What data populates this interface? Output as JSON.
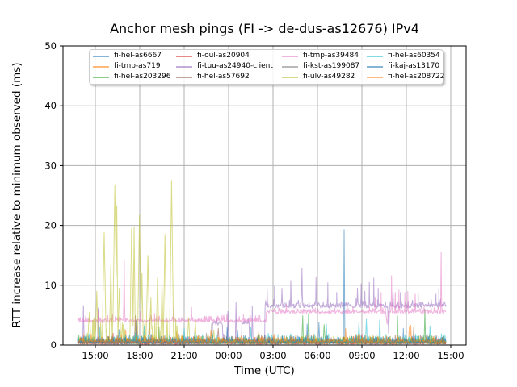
{
  "chart_data": {
    "type": "line",
    "title": "Anchor mesh pings (FI -> de-dus-as12676) IPv4",
    "xlabel": "Time (UTC)",
    "ylabel": "RTT increase relative to minimum observed (ms)",
    "ylim": [
      0,
      50
    ],
    "y_ticks": [
      0,
      10,
      20,
      30,
      40,
      50
    ],
    "x_tick_hours": [
      15,
      18,
      21,
      24,
      27,
      30,
      33,
      36,
      39
    ],
    "x_tick_labels": [
      "15:00",
      "18:00",
      "21:00",
      "00:00",
      "03:00",
      "06:00",
      "09:00",
      "12:00",
      "15:00"
    ],
    "x_hours_range": [
      13.8,
      38.7
    ],
    "grid": true,
    "grid_color": "#b0b0b0",
    "line_alpha": 0.55,
    "legend_position": "upper center, 4 columns, 3 rows",
    "series": [
      {
        "name": "fi-hel-as6667",
        "color": "#1f77b4",
        "segments": [
          [
            13.8,
            38.7,
            0.35,
            1.1,
            0.3
          ]
        ],
        "spikes": [
          [
            16.6,
            2.6,
            0.07
          ],
          [
            24.6,
            2.5,
            0.08
          ],
          [
            30.1,
            3.8,
            0.06
          ],
          [
            31.8,
            19.3,
            0.05
          ]
        ]
      },
      {
        "name": "fi-tmp-as719",
        "color": "#ff7f0e",
        "segments": [
          [
            13.8,
            38.7,
            0.3,
            1.0,
            0.3
          ]
        ],
        "spikes": [
          [
            17.05,
            2.5,
            0.08
          ],
          [
            20.5,
            2.2,
            0.08
          ],
          [
            26.0,
            2.3,
            0.08
          ],
          [
            36.2,
            3.1,
            0.06
          ]
        ]
      },
      {
        "name": "fi-hel-as203296",
        "color": "#2ca02c",
        "segments": [
          [
            13.8,
            38.7,
            0.3,
            1.2,
            0.3
          ]
        ],
        "spikes": [
          [
            19.3,
            3.0,
            0.06
          ],
          [
            29.0,
            4.9,
            0.06
          ],
          [
            29.4,
            5.3,
            0.06
          ],
          [
            30.45,
            3.4,
            0.08
          ],
          [
            35.4,
            4.9,
            0.05
          ],
          [
            37.25,
            6.0,
            0.05
          ]
        ]
      },
      {
        "name": "fi-oul-as20904",
        "color": "#d62728",
        "segments": [
          [
            13.8,
            38.7,
            0.25,
            0.8,
            0.25
          ]
        ],
        "spikes": [
          [
            16.2,
            2.0,
            0.06
          ],
          [
            33.0,
            1.8,
            0.06
          ]
        ]
      },
      {
        "name": "fi-tuu-as24940-client",
        "color": "#9467bd",
        "segments": [
          [
            13.8,
            22.9,
            0.35,
            1.3,
            0.3
          ],
          [
            22.9,
            23.6,
            3.6,
            0.9,
            0.6
          ],
          [
            23.6,
            24.9,
            0.5,
            1.5,
            0.4
          ],
          [
            24.9,
            25.4,
            3.8,
            0.9,
            0.6
          ],
          [
            25.4,
            26.45,
            0.5,
            1.2,
            0.4
          ],
          [
            26.45,
            38.7,
            6.5,
            1.0,
            0.7
          ]
        ],
        "spikes": [
          [
            14.2,
            6.6,
            0.05
          ],
          [
            15.2,
            6.2,
            0.05
          ],
          [
            17.8,
            4.0,
            0.08
          ],
          [
            23.95,
            5.6,
            0.05
          ],
          [
            24.5,
            7.1,
            0.05
          ],
          [
            25.6,
            6.5,
            0.05
          ],
          [
            26.6,
            9.4,
            0.08
          ],
          [
            27.1,
            9.8,
            0.06
          ],
          [
            27.6,
            9.5,
            0.12
          ],
          [
            28.2,
            10.8,
            0.05
          ],
          [
            28.95,
            12.8,
            0.09
          ],
          [
            29.9,
            11.3,
            0.06
          ],
          [
            30.7,
            10.4,
            0.05
          ],
          [
            31.3,
            8.8,
            0.05
          ],
          [
            32.7,
            9.5,
            0.05
          ],
          [
            32.95,
            10.2,
            0.05
          ],
          [
            33.2,
            9.0,
            0.05
          ],
          [
            33.5,
            10.5,
            0.05
          ],
          [
            33.8,
            11.2,
            0.05
          ],
          [
            34.1,
            9.5,
            0.05
          ],
          [
            35.1,
            9.0,
            0.05
          ],
          [
            35.6,
            8.8,
            0.05
          ],
          [
            36.8,
            8.6,
            0.05
          ],
          [
            38.0,
            8.5,
            0.04
          ],
          [
            38.2,
            9.5,
            0.04
          ]
        ],
        "dips": [
          [
            34.8,
            2.0,
            0.07
          ]
        ]
      },
      {
        "name": "fi-hel-as57692",
        "color": "#8c564b",
        "segments": [
          [
            13.8,
            38.7,
            0.4,
            1.3,
            0.35
          ]
        ],
        "spikes": [
          [
            17.7,
            4.9,
            0.06
          ],
          [
            18.65,
            4.5,
            0.07
          ],
          [
            23.3,
            2.8,
            0.08
          ],
          [
            36.5,
            3.0,
            0.06
          ]
        ]
      },
      {
        "name": "fi-tmp-as39484",
        "color": "#e377c2",
        "segments": [
          [
            13.8,
            26.55,
            4.0,
            0.9,
            0.5
          ],
          [
            26.55,
            38.7,
            5.5,
            0.8,
            0.5
          ]
        ],
        "spikes": [
          [
            15.2,
            5.8,
            0.05
          ],
          [
            16.95,
            14.2,
            0.06
          ],
          [
            18.05,
            5.6,
            0.05
          ],
          [
            19.0,
            5.3,
            0.05
          ],
          [
            20.3,
            6.3,
            0.05
          ],
          [
            21.5,
            6.3,
            0.05
          ],
          [
            25.0,
            5.1,
            0.05
          ],
          [
            27.9,
            6.8,
            0.04
          ],
          [
            33.9,
            8.0,
            0.05
          ],
          [
            34.3,
            8.8,
            0.05
          ],
          [
            35.0,
            11.6,
            0.05
          ],
          [
            35.25,
            8.8,
            0.04
          ],
          [
            35.5,
            9.2,
            0.05
          ],
          [
            35.9,
            8.8,
            0.04
          ],
          [
            36.1,
            9.0,
            0.04
          ],
          [
            36.6,
            8.5,
            0.04
          ],
          [
            38.35,
            15.6,
            0.05
          ]
        ],
        "dips": [
          [
            34.7,
            3.5,
            0.1
          ]
        ]
      },
      {
        "name": "fi-kst-as199087",
        "color": "#7f7f7f",
        "segments": [
          [
            13.8,
            38.7,
            0.3,
            0.9,
            0.3
          ]
        ],
        "spikes": [
          [
            17.75,
            4.2,
            0.05
          ],
          [
            22.5,
            2.0,
            0.06
          ],
          [
            22.85,
            3.5,
            0.05
          ]
        ]
      },
      {
        "name": "fi-ulv-as49282",
        "color": "#bcbd22",
        "segments": [
          [
            13.8,
            20.9,
            0.8,
            4.0,
            0.6
          ],
          [
            20.9,
            38.7,
            0.4,
            1.2,
            0.4
          ]
        ],
        "spikes": [
          [
            14.6,
            5.5,
            0.12
          ],
          [
            15.1,
            9.0,
            0.1
          ],
          [
            15.6,
            18.8,
            0.14
          ],
          [
            16.05,
            13.3,
            0.1
          ],
          [
            16.32,
            26.8,
            0.15
          ],
          [
            16.45,
            23.3,
            0.08
          ],
          [
            16.62,
            9.5,
            0.1
          ],
          [
            17.45,
            19.5,
            0.12
          ],
          [
            17.62,
            19.8,
            0.08
          ],
          [
            17.98,
            21.7,
            0.13
          ],
          [
            18.15,
            12.0,
            0.09
          ],
          [
            18.55,
            15.0,
            0.13
          ],
          [
            18.75,
            8.0,
            0.09
          ],
          [
            19.2,
            11.2,
            0.1
          ],
          [
            19.5,
            10.3,
            0.09
          ],
          [
            19.7,
            18.5,
            0.11
          ],
          [
            20.15,
            27.5,
            0.14
          ],
          [
            21.3,
            4.5,
            0.1
          ],
          [
            21.75,
            4.2,
            0.08
          ],
          [
            23.0,
            2.5,
            0.08
          ]
        ]
      },
      {
        "name": "fi-hel-as60354",
        "color": "#17becf",
        "segments": [
          [
            13.8,
            38.7,
            0.45,
            1.5,
            0.4
          ]
        ],
        "spikes": [
          [
            15.3,
            3.0,
            0.06
          ],
          [
            18.3,
            3.2,
            0.06
          ],
          [
            21.0,
            2.8,
            0.06
          ],
          [
            25.5,
            3.0,
            0.06
          ],
          [
            30.6,
            3.5,
            0.06
          ],
          [
            32.8,
            3.8,
            0.07
          ],
          [
            33.3,
            4.3,
            0.07
          ],
          [
            34.2,
            4.2,
            0.06
          ],
          [
            37.6,
            3.2,
            0.06
          ]
        ]
      },
      {
        "name": "fi-kaj-as13170",
        "color": "#1f77b4",
        "segments": [
          [
            13.8,
            38.7,
            0.4,
            1.2,
            0.35
          ]
        ],
        "spikes": [
          [
            23.9,
            3.0,
            0.06
          ],
          [
            29.3,
            3.5,
            0.05
          ],
          [
            35.8,
            2.8,
            0.05
          ]
        ]
      },
      {
        "name": "fi-hel-as208722",
        "color": "#ff7f0e",
        "segments": [
          [
            13.8,
            38.7,
            0.5,
            1.2,
            0.4
          ]
        ],
        "spikes": [
          [
            22.8,
            2.5,
            0.08
          ],
          [
            31.9,
            2.8,
            0.06
          ],
          [
            36.3,
            3.3,
            0.06
          ]
        ]
      }
    ]
  }
}
